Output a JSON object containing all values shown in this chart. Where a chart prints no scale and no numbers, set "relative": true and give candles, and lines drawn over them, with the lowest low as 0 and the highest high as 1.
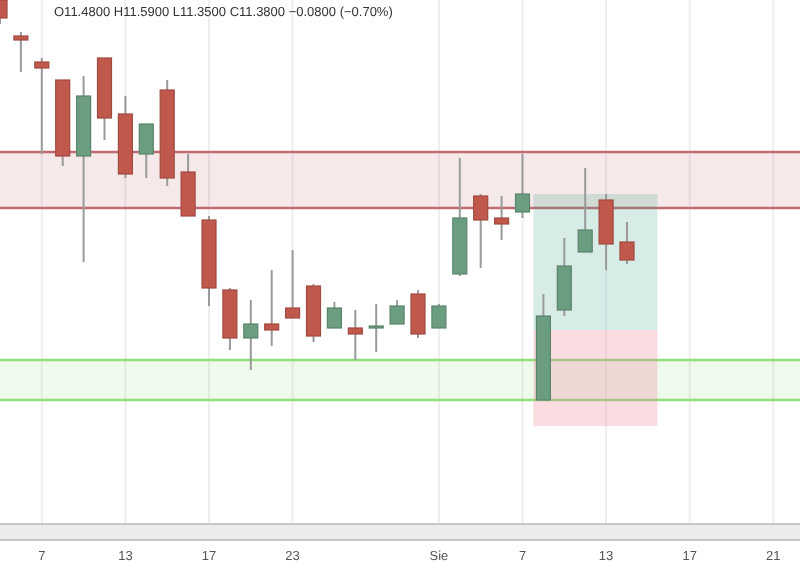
{
  "chart_data": {
    "type": "candlestick",
    "relative": true,
    "grid": "x",
    "annotations": [
      "O11.4800 H11.5900 L11.3500 C11.3800 −0.0800 (−0.70%)"
    ],
    "categories": [
      null,
      null,
      "7",
      null,
      null,
      null,
      "13",
      null,
      null,
      null,
      "17",
      null,
      null,
      null,
      "23",
      null,
      null,
      null,
      null,
      null,
      null,
      "Sie",
      null,
      null,
      null,
      "7",
      null,
      null,
      null,
      "13",
      null,
      null,
      null,
      "17",
      null,
      null,
      null,
      "21",
      null
    ],
    "ohlc": [
      [
        1.0,
        1.0,
        0.94,
        0.955
      ],
      [
        0.91,
        0.92,
        0.82,
        0.9
      ],
      [
        0.845,
        0.855,
        0.615,
        0.83
      ],
      [
        0.8,
        0.8,
        0.585,
        0.61
      ],
      [
        0.61,
        0.81,
        0.345,
        0.76
      ],
      [
        0.855,
        0.855,
        0.65,
        0.705
      ],
      [
        0.715,
        0.76,
        0.555,
        0.565
      ],
      [
        0.615,
        0.69,
        0.555,
        0.69
      ],
      [
        0.775,
        0.8,
        0.535,
        0.555
      ],
      [
        0.57,
        0.615,
        0.46,
        0.46
      ],
      [
        0.45,
        0.46,
        0.235,
        0.28
      ],
      [
        0.275,
        0.28,
        0.125,
        0.155
      ],
      [
        0.155,
        0.25,
        0.075,
        0.19
      ],
      [
        0.19,
        0.325,
        0.135,
        0.175
      ],
      [
        0.23,
        0.375,
        0.205,
        0.205
      ],
      [
        0.285,
        0.29,
        0.145,
        0.16
      ],
      [
        0.18,
        0.245,
        0.18,
        0.23
      ],
      [
        0.18,
        0.225,
        0.1,
        0.165
      ],
      [
        0.18,
        0.24,
        0.12,
        0.185
      ],
      [
        0.19,
        0.25,
        0.19,
        0.235
      ],
      [
        0.265,
        0.275,
        0.155,
        0.165
      ],
      [
        0.18,
        0.24,
        0.18,
        0.235
      ],
      [
        0.315,
        0.605,
        0.31,
        0.455
      ],
      [
        0.51,
        0.515,
        0.33,
        0.45
      ],
      [
        0.455,
        0.51,
        0.4,
        0.44
      ],
      [
        0.47,
        0.615,
        0.455,
        0.515
      ],
      [
        0.0,
        0.265,
        0.0,
        0.21
      ],
      [
        0.225,
        0.405,
        0.21,
        0.335
      ],
      [
        0.37,
        0.58,
        0.37,
        0.425
      ],
      [
        0.5,
        0.515,
        0.325,
        0.39
      ],
      [
        0.395,
        0.445,
        0.34,
        0.35
      ],
      null,
      null,
      null,
      null,
      null,
      null,
      null,
      null
    ],
    "colors": [
      "#c0584c",
      "#c0584c",
      "#c0584c",
      "#c0584c",
      "#6b9e80",
      "#c0584c",
      "#c0584c",
      "#6b9e80",
      "#c0584c",
      "#c0584c",
      "#c0584c",
      "#c0584c",
      "#6b9e80",
      "#c0584c",
      "#c0584c",
      "#c0584c",
      "#6b9e80",
      "#c0584c",
      "#6b9e80",
      "#6b9e80",
      "#c0584c",
      "#6b9e80",
      "#6b9e80",
      "#c0584c",
      "#c0584c",
      "#6b9e80",
      "#6b9e80",
      "#6b9e80",
      "#6b9e80",
      "#c0584c",
      "#c0584c",
      null,
      null,
      null,
      null,
      null,
      null,
      null,
      null
    ],
    "bands": [
      {
        "axis": "y",
        "from": 0.48,
        "to": 0.62,
        "color": "#c06a74"
      },
      {
        "axis": "y",
        "from": 0.0,
        "to": 0.1,
        "color": "#8fe07a"
      }
    ],
    "ref_lines": [
      {
        "axis": "y",
        "value": 0.62,
        "color": "#c06a74"
      },
      {
        "axis": "y",
        "value": 0.48,
        "color": "#c06a74"
      },
      {
        "axis": "y",
        "value": 0.1,
        "color": "#8fe07a"
      },
      {
        "axis": "y",
        "value": 0.0,
        "color": "#8fe07a"
      }
    ]
  }
}
